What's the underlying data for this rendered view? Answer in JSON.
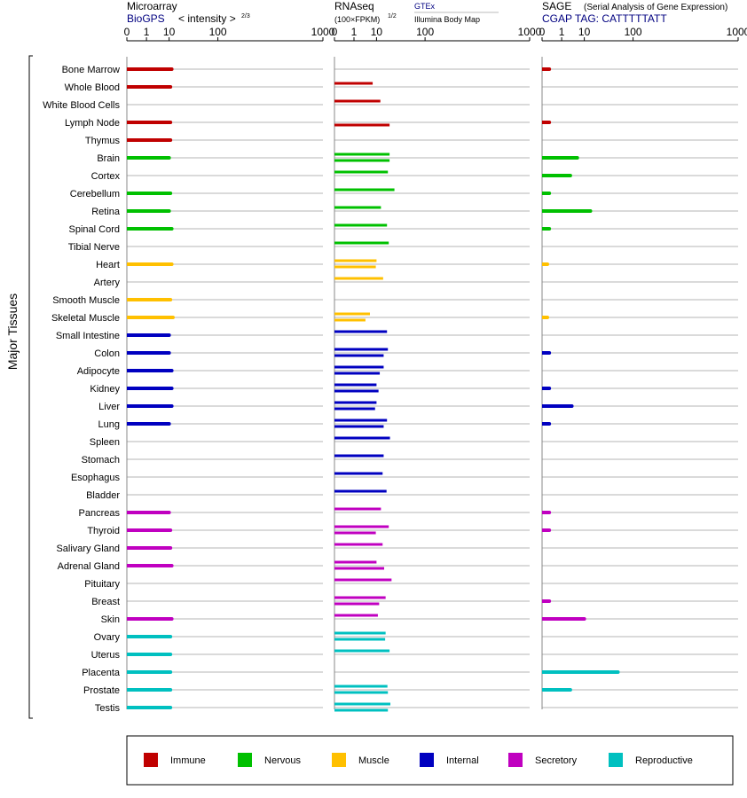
{
  "header": {
    "microarray": {
      "title": "Microarray",
      "source_link": "BioGPS",
      "unit": "< intensity >",
      "unit_exponent": "2/3"
    },
    "rnaseq": {
      "title": "RNAseq",
      "source_link": "GTEx",
      "unit": "(100×FPKM)",
      "unit_exponent": "1/2",
      "subsource": "Illumina Body Map"
    },
    "sage": {
      "title": "SAGE",
      "subtitle": "(Serial Analysis of Gene Expression)",
      "source_link": "CGAP TAG: CATTTTTATT"
    }
  },
  "ylabel": "Major Tissues",
  "axis": {
    "tick_labels": [
      "0",
      "1",
      "10",
      "100",
      "1000"
    ],
    "tick_values": [
      0,
      1,
      10,
      100,
      1000
    ],
    "range": [
      0,
      1000
    ]
  },
  "legend": {
    "items": [
      {
        "key": "immune",
        "label": "Immune",
        "color": "#C00000"
      },
      {
        "key": "nervous",
        "label": "Nervous",
        "color": "#00C000"
      },
      {
        "key": "muscle",
        "label": "Muscle",
        "color": "#FFC000"
      },
      {
        "key": "internal",
        "label": "Internal",
        "color": "#0000C0"
      },
      {
        "key": "secretory",
        "label": "Secretory",
        "color": "#C000C0"
      },
      {
        "key": "reproductive",
        "label": "Reproductive",
        "color": "#00C0C0"
      }
    ]
  },
  "chart_data": {
    "type": "bar",
    "orientation": "horizontal",
    "scale": "power",
    "categories": [
      "Bone Marrow",
      "Whole Blood",
      "White Blood Cells",
      "Lymph Node",
      "Thymus",
      "Brain",
      "Cortex",
      "Cerebellum",
      "Retina",
      "Spinal Cord",
      "Tibial Nerve",
      "Heart",
      "Artery",
      "Smooth Muscle",
      "Skeletal Muscle",
      "Small Intestine",
      "Colon",
      "Adipocyte",
      "Kidney",
      "Liver",
      "Lung",
      "Spleen",
      "Stomach",
      "Esophagus",
      "Bladder",
      "Pancreas",
      "Thyroid",
      "Salivary Gland",
      "Adrenal Gland",
      "Pituitary",
      "Breast",
      "Skin",
      "Ovary",
      "Uterus",
      "Placenta",
      "Prostate",
      "Testis"
    ],
    "groups": [
      "immune",
      "immune",
      "immune",
      "immune",
      "immune",
      "nervous",
      "nervous",
      "nervous",
      "nervous",
      "nervous",
      "nervous",
      "muscle",
      "muscle",
      "muscle",
      "muscle",
      "internal",
      "internal",
      "internal",
      "internal",
      "internal",
      "internal",
      "internal",
      "internal",
      "internal",
      "internal",
      "secretory",
      "secretory",
      "secretory",
      "secretory",
      "secretory",
      "secretory",
      "secretory",
      "reproductive",
      "reproductive",
      "reproductive",
      "reproductive",
      "reproductive"
    ],
    "microarray": [
      12,
      11,
      null,
      11,
      11,
      10,
      null,
      11,
      10,
      12,
      null,
      12,
      null,
      11,
      13,
      10,
      10,
      12,
      12,
      12,
      10,
      null,
      null,
      null,
      null,
      10,
      11,
      11,
      12,
      null,
      null,
      12,
      11,
      11,
      11,
      11,
      11
    ],
    "rnaseq_gtex": [
      null,
      7.5,
      13,
      null,
      null,
      22.5,
      20.5,
      29,
      13.5,
      19.5,
      21.5,
      10,
      15.5,
      null,
      6,
      19.5,
      20.5,
      16,
      10,
      10,
      19.5,
      23,
      16,
      15,
      19,
      13.5,
      21.5,
      15,
      10,
      25,
      18,
      11,
      18,
      22.5,
      null,
      20,
      23.5
    ],
    "rnaseq_ibm": [
      null,
      null,
      null,
      22.5,
      null,
      22.5,
      null,
      null,
      null,
      null,
      null,
      9.5,
      null,
      null,
      4,
      null,
      16,
      12.5,
      11.5,
      9,
      16,
      null,
      null,
      null,
      null,
      null,
      9.5,
      null,
      16.5,
      null,
      12,
      null,
      17.5,
      null,
      null,
      20.5,
      20.5
    ],
    "sage": [
      0.05,
      null,
      null,
      0.05,
      null,
      5.8,
      3,
      0.05,
      15,
      0.05,
      null,
      0.02,
      null,
      null,
      0.02,
      null,
      0.05,
      null,
      0.05,
      3.5,
      0.05,
      null,
      null,
      null,
      null,
      0.05,
      0.05,
      null,
      null,
      null,
      0.05,
      10,
      null,
      null,
      58,
      3,
      null
    ]
  }
}
